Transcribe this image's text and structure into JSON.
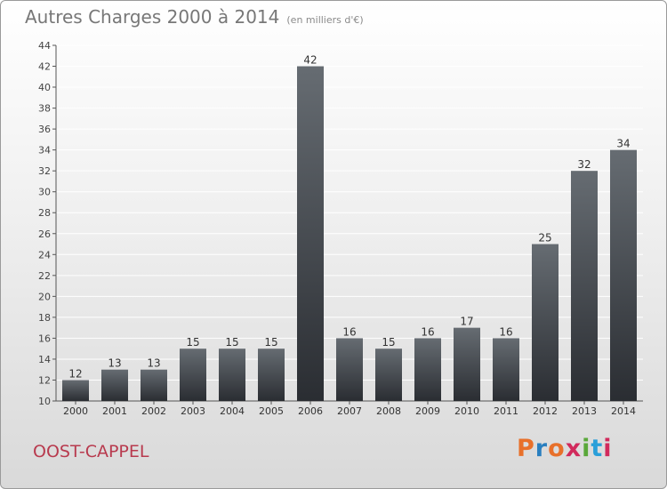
{
  "header": {
    "title": "Autres Charges 2000 à 2014",
    "subtitle": "(en milliers d'€)"
  },
  "footer": {
    "commune": "OOST-CAPPEL",
    "brand": [
      "P",
      "r",
      "o",
      "x",
      "i",
      "t",
      "i"
    ]
  },
  "colors": {
    "bar_top": "#666c72",
    "bar_bottom": "#2a2d32",
    "commune": "#b83a4e",
    "brand": [
      "#e8702a",
      "#2a7fbf",
      "#e8702a",
      "#d12a5c",
      "#5aa83a",
      "#2a9fd9",
      "#d12a5c"
    ]
  },
  "chart_data": {
    "type": "bar",
    "title": "Autres Charges 2000 à 2014",
    "subtitle": "(en milliers d'€)",
    "categories": [
      "2000",
      "2001",
      "2002",
      "2003",
      "2004",
      "2005",
      "2006",
      "2007",
      "2008",
      "2009",
      "2010",
      "2011",
      "2012",
      "2013",
      "2014"
    ],
    "values": [
      12,
      13,
      13,
      15,
      15,
      15,
      42,
      16,
      15,
      16,
      17,
      16,
      25,
      32,
      34
    ],
    "ylim": [
      10,
      44
    ],
    "yticks": [
      10,
      12,
      14,
      16,
      18,
      20,
      22,
      24,
      26,
      28,
      30,
      32,
      34,
      36,
      38,
      40,
      42,
      44
    ],
    "grid": true,
    "data_labels": true
  }
}
